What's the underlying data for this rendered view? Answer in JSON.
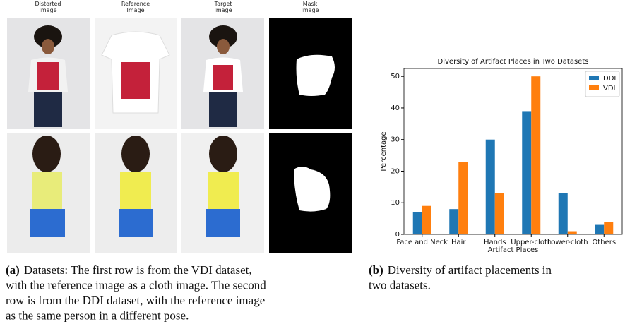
{
  "panel_a": {
    "column_headers": [
      [
        "Distorted",
        "Image"
      ],
      [
        "Reference",
        "Image"
      ],
      [
        "Target",
        "Image"
      ],
      [
        "Mask",
        "Image"
      ]
    ],
    "caption": {
      "label": "(a)",
      "lines": [
        "Datasets: The first row is from the VDI dataset,",
        "with the reference image as a cloth image. The second",
        "row is from the DDI dataset, with the reference image",
        "as the same person in a different pose."
      ]
    }
  },
  "panel_b": {
    "caption": {
      "label": "(b)",
      "lines": [
        "Diversity of artifact placements in",
        "two datasets."
      ]
    }
  },
  "chart_data": {
    "type": "bar",
    "title": "Diversity of Artifact Places in Two Datasets",
    "x_label": "Artifact Places",
    "y_label": "Percentage",
    "categories": [
      "Face and Neck",
      "Hair",
      "Hands",
      "Upper-cloth",
      "Lower-cloth",
      "Others"
    ],
    "series": [
      {
        "name": "DDI",
        "color": "#1f77b4",
        "values": [
          7,
          8,
          30,
          39,
          13,
          3
        ]
      },
      {
        "name": "VDI",
        "color": "#ff7f0e",
        "values": [
          9,
          23,
          13,
          50,
          1,
          4
        ]
      }
    ],
    "ylim": [
      0,
      52.5
    ],
    "yticks": [
      0,
      10,
      20,
      30,
      40,
      50
    ],
    "legend": "upper right"
  }
}
